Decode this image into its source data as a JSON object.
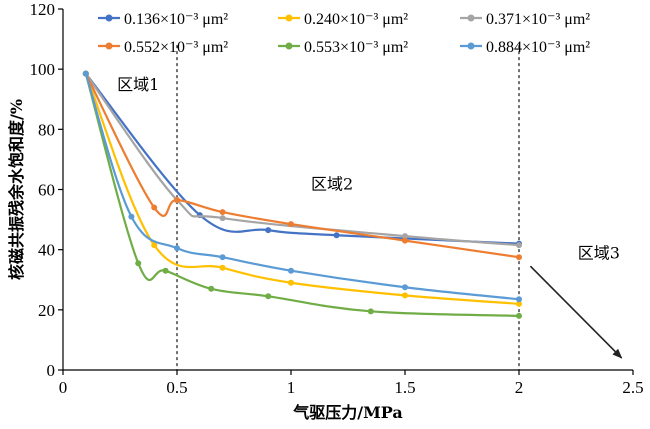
{
  "chart_data": {
    "type": "line",
    "xlabel": "气驱压力/MPa",
    "ylabel": "核磁共振残余水饱和度/%",
    "xlim": [
      0,
      2.5
    ],
    "ylim": [
      0,
      120
    ],
    "xticks": [
      "0",
      "0.5",
      "1",
      "1.5",
      "2",
      "2.5"
    ],
    "yticks": [
      "0",
      "20",
      "40",
      "60",
      "80",
      "100",
      "120"
    ],
    "grid": false,
    "legend_position": "top-right",
    "series": [
      {
        "name": "0.136×10⁻³ μm²",
        "color": "#4472c4",
        "x": [
          0.1,
          0.6,
          0.9,
          1.2,
          2.0
        ],
        "y": [
          98.5,
          51.5,
          46.5,
          44.8,
          42.0
        ]
      },
      {
        "name": "0.240×10⁻³ μm²",
        "color": "#ffc000",
        "x": [
          0.1,
          0.4,
          0.7,
          1.0,
          1.5,
          2.0
        ],
        "y": [
          98.5,
          41.5,
          34.0,
          29.0,
          24.8,
          22.0
        ]
      },
      {
        "name": "0.371×10⁻³ μm²",
        "color": "#a5a5a5",
        "x": [
          0.1,
          0.5,
          0.7,
          1.5,
          2.0
        ],
        "y": [
          98.5,
          56.5,
          50.5,
          44.5,
          41.5
        ]
      },
      {
        "name": "0.552×10⁻³ μm²",
        "color": "#ed7d31",
        "x": [
          0.1,
          0.4,
          0.5,
          0.7,
          1.0,
          1.5,
          2.0
        ],
        "y": [
          98.5,
          54.0,
          56.5,
          52.5,
          48.5,
          43.0,
          37.5
        ]
      },
      {
        "name": "0.553×10⁻³ μm²",
        "color": "#70ad47",
        "x": [
          0.1,
          0.33,
          0.45,
          0.65,
          0.9,
          1.35,
          2.0
        ],
        "y": [
          98.5,
          35.5,
          33.0,
          27.0,
          24.5,
          19.5,
          18.0
        ]
      },
      {
        "name": "0.884×10⁻³ μm²",
        "color": "#5b9bd5",
        "x": [
          0.1,
          0.3,
          0.5,
          0.7,
          1.0,
          1.5,
          2.0
        ],
        "y": [
          98.5,
          51.0,
          40.5,
          37.5,
          33.0,
          27.5,
          23.5
        ]
      }
    ],
    "vlines": [
      0.5,
      2.0
    ],
    "annotations": [
      {
        "text": "区域1",
        "x": 0.33,
        "y": 93
      },
      {
        "text": "区域2",
        "x": 1.18,
        "y": 60
      },
      {
        "text": "区域3",
        "x": 2.35,
        "y": 37
      }
    ],
    "arrow": {
      "from": [
        2.05,
        34.5
      ],
      "to": [
        2.45,
        4
      ]
    }
  }
}
